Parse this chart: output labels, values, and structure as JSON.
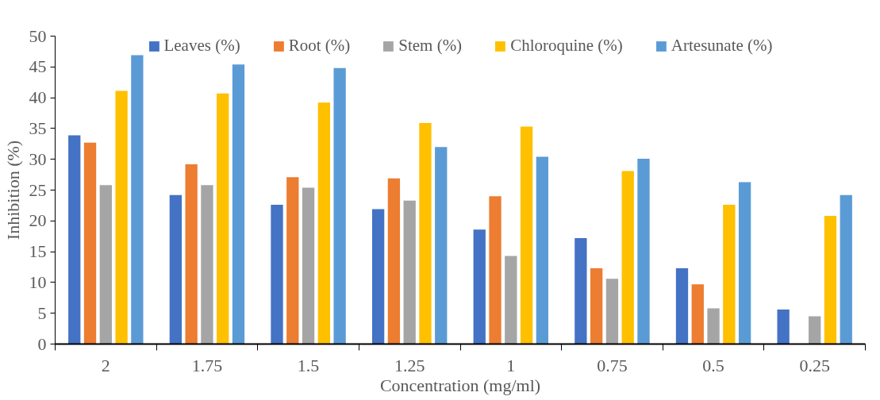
{
  "chart_data": {
    "type": "bar",
    "xlabel": "Concentration (mg/ml)",
    "ylabel": "Inhibition (%)",
    "categories": [
      "2",
      "1.75",
      "1.5",
      "1.25",
      "1",
      "0.75",
      "0.5",
      "0.25"
    ],
    "series": [
      {
        "name": "Leaves (%)",
        "color": "#4472c4",
        "values": [
          33.9,
          24.2,
          22.6,
          21.9,
          18.6,
          17.2,
          12.3,
          5.6
        ]
      },
      {
        "name": "Root (%)",
        "color": "#ed7d31",
        "values": [
          32.7,
          29.2,
          27.1,
          26.9,
          24.0,
          12.3,
          9.7,
          null
        ]
      },
      {
        "name": "Stem (%)",
        "color": "#a5a5a5",
        "values": [
          25.8,
          25.8,
          25.4,
          23.3,
          14.3,
          10.6,
          5.8,
          4.5
        ]
      },
      {
        "name": "Chloroquine (%)",
        "color": "#ffc000",
        "values": [
          41.1,
          40.7,
          39.2,
          35.9,
          35.3,
          28.1,
          22.6,
          20.8
        ]
      },
      {
        "name": "Artesunate (%)",
        "color": "#5b9bd5",
        "values": [
          46.9,
          45.4,
          44.8,
          32.0,
          30.4,
          30.1,
          26.3,
          24.2
        ]
      }
    ],
    "ylim": [
      0,
      50
    ],
    "yticks": [
      0,
      5,
      10,
      15,
      20,
      25,
      30,
      35,
      40,
      45,
      50
    ],
    "grid": false,
    "legend": "top"
  }
}
